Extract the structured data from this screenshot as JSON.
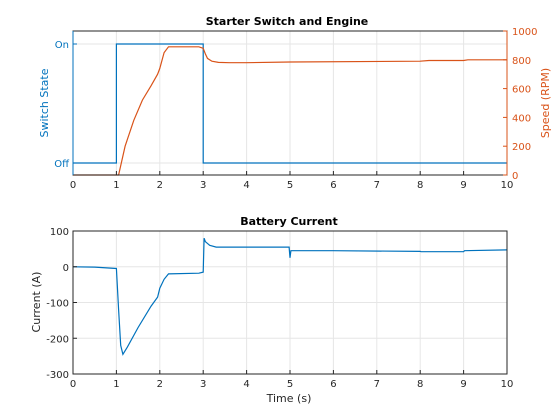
{
  "colors": {
    "blue": "#0072bd",
    "orange": "#d95319",
    "grid": "#e6e6e6",
    "axis": "#262626"
  },
  "chart_data": [
    {
      "type": "line",
      "title": "Starter Switch and Engine",
      "xlabel": "",
      "xlim": [
        0,
        10
      ],
      "x_ticks": [
        "0",
        "1",
        "2",
        "3",
        "4",
        "5",
        "6",
        "7",
        "8",
        "9",
        "10"
      ],
      "grid": true,
      "y_left": {
        "label": "Switch State",
        "ylim": [
          0,
          1
        ],
        "ticks": [
          {
            "value": 0,
            "label": "Off"
          },
          {
            "value": 1,
            "label": "On"
          }
        ]
      },
      "y_right": {
        "label": "Speed (RPM)",
        "ylim": [
          0,
          1000
        ],
        "ticks": [
          "0",
          "200",
          "400",
          "600",
          "800",
          "1000"
        ]
      },
      "series": [
        {
          "axis": "left",
          "color": "#0072bd",
          "x": [
            0,
            1,
            1,
            3,
            3,
            10
          ],
          "y": [
            0,
            0,
            1,
            1,
            0,
            0
          ]
        },
        {
          "axis": "right",
          "color": "#d95319",
          "x": [
            0,
            1.05,
            1.2,
            1.4,
            1.6,
            1.8,
            1.95,
            2.0,
            2.1,
            2.2,
            2.5,
            2.9,
            3.0,
            3.05,
            3.1,
            3.2,
            3.35,
            3.6,
            4.0,
            5.0,
            8.0,
            8.2,
            9.0,
            9.1,
            10.0
          ],
          "y": [
            0,
            0,
            200,
            380,
            520,
            620,
            700,
            740,
            850,
            890,
            890,
            890,
            880,
            840,
            810,
            790,
            782,
            780,
            780,
            785,
            790,
            795,
            795,
            800,
            800
          ]
        }
      ]
    },
    {
      "type": "line",
      "title": "Battery Current",
      "xlabel": "Time (s)",
      "ylabel": "Current (A)",
      "xlim": [
        0,
        10
      ],
      "ylim": [
        -300,
        100
      ],
      "x_ticks": [
        "0",
        "1",
        "2",
        "3",
        "4",
        "5",
        "6",
        "7",
        "8",
        "9",
        "10"
      ],
      "y_ticks": [
        "100",
        "0",
        "-100",
        "-200",
        "-300"
      ],
      "grid": true,
      "series": [
        {
          "color": "#0072bd",
          "x": [
            0,
            0.5,
            1.0,
            1.05,
            1.1,
            1.15,
            1.25,
            1.5,
            1.8,
            1.95,
            2.0,
            2.1,
            2.2,
            2.9,
            3.0,
            3.02,
            3.05,
            3.15,
            3.3,
            4.0,
            4.98,
            5.0,
            5.02,
            5.1,
            6.0,
            8.0,
            8.02,
            9.0,
            9.02,
            10.0
          ],
          "y": [
            0,
            -1,
            -5,
            -120,
            -220,
            -245,
            -225,
            -170,
            -110,
            -85,
            -60,
            -35,
            -20,
            -18,
            -15,
            80,
            70,
            60,
            55,
            55,
            55,
            25,
            45,
            45,
            45,
            43,
            42,
            42,
            45,
            47
          ]
        }
      ]
    }
  ]
}
